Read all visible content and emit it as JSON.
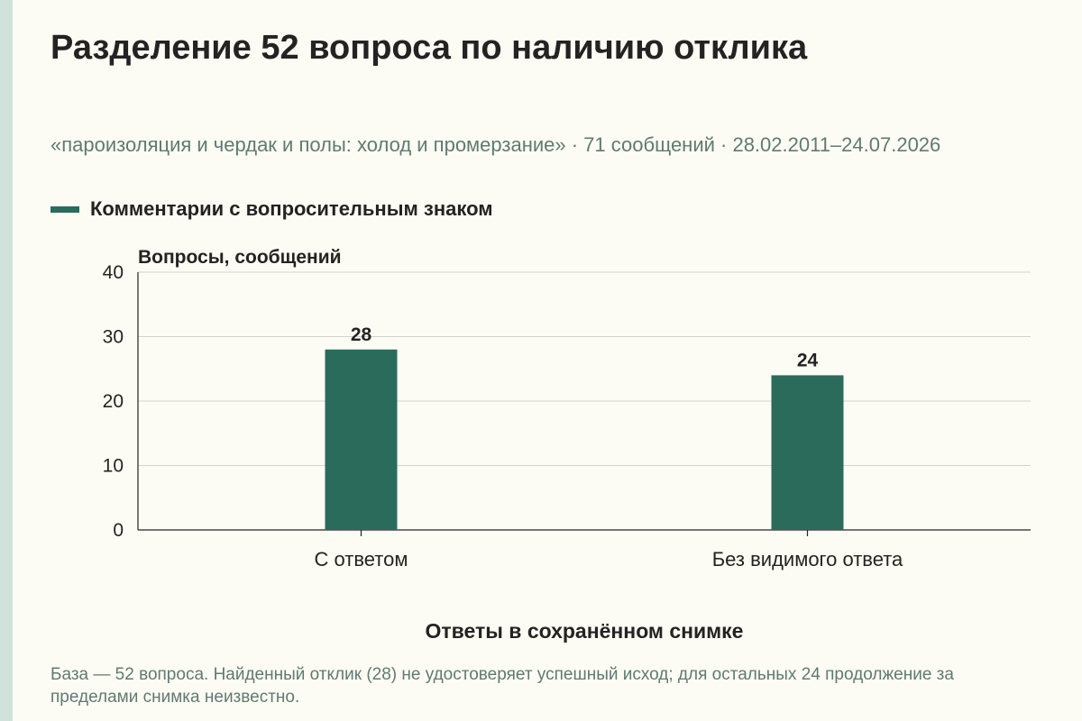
{
  "chart_data": {
    "type": "bar",
    "title": "Разделение 52 вопроса по наличию отклика",
    "subtitle": "«пароизоляция и чердак и полы: холод и промерзание» · 71 сообщений · 28.02.2011–24.07.2026",
    "categories": [
      "С ответом",
      "Без видимого ответа"
    ],
    "series": [
      {
        "name": "Комментарии с вопросительным знаком",
        "values": [
          28,
          24
        ],
        "color": "#2b6b5b"
      }
    ],
    "xlabel": "Ответы в сохранённом снимке",
    "ylabel": "Вопросы, сообщений",
    "ylim": [
      0,
      40
    ],
    "yticks": [
      0,
      10,
      20,
      30,
      40
    ],
    "grid": true,
    "legend_position": "top-left"
  },
  "footnote": "База — 52 вопроса. Найденный отклик (28) не удостоверяет успешный исход; для остальных 24 продолжение за пределами снимка неизвестно."
}
